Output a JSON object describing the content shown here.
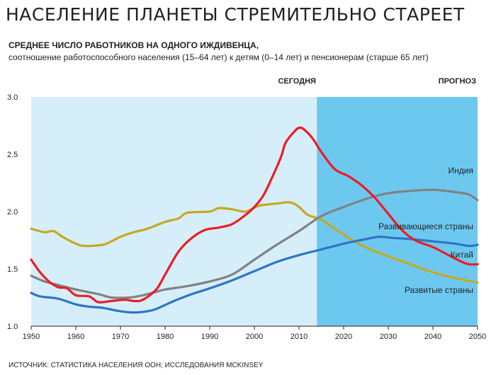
{
  "header": {
    "title": "НАСЕЛЕНИЕ ПЛАНЕТЫ СТРЕМИТЕЛЬНО СТАРЕЕТ",
    "subtitle": "СРЕДНЕЕ ЧИСЛО РАБОТНИКОВ НА ОДНОГО ИЖДИВЕНЦА,",
    "subtitle2": "соотношение работоспособного населения (15–64 лет) к детям (0–14 лет) и пенсионерам (старше 65 лет)"
  },
  "source": "ИСТОЧНИК: СТАТИСТИКА НАСЕЛЕНИЯ ООН; ИССЛЕДОВАНИЯ MCKINSEY",
  "chart_data": {
    "type": "line",
    "xlim": [
      1950,
      2050
    ],
    "ylim": [
      1.0,
      3.0
    ],
    "x_ticks": [
      "1950",
      "1960",
      "1970",
      "1980",
      "1990",
      "2000",
      "2010",
      "2020",
      "2030",
      "2040",
      "2050"
    ],
    "y_ticks": [
      "1.0",
      "1.5",
      "2.0",
      "2.5",
      "3.0"
    ],
    "regions": [
      {
        "label": "СЕГОДНЯ",
        "x_from": 1950,
        "x_to": 2014,
        "color": "#d6eefa"
      },
      {
        "label": "ПРОГНОЗ",
        "x_from": 2014,
        "x_to": 2050,
        "color": "#6dc8ef"
      }
    ],
    "grid": false,
    "series": [
      {
        "name": "Китай",
        "color": "#ed1c24",
        "points": [
          [
            1950,
            1.58
          ],
          [
            1952,
            1.47
          ],
          [
            1954,
            1.39
          ],
          [
            1956,
            1.34
          ],
          [
            1958,
            1.33
          ],
          [
            1960,
            1.27
          ],
          [
            1963,
            1.26
          ],
          [
            1965,
            1.21
          ],
          [
            1968,
            1.22
          ],
          [
            1971,
            1.23
          ],
          [
            1973,
            1.22
          ],
          [
            1975,
            1.23
          ],
          [
            1978,
            1.32
          ],
          [
            1980,
            1.45
          ],
          [
            1983,
            1.65
          ],
          [
            1986,
            1.77
          ],
          [
            1989,
            1.84
          ],
          [
            1992,
            1.86
          ],
          [
            1995,
            1.89
          ],
          [
            1998,
            1.97
          ],
          [
            2000,
            2.04
          ],
          [
            2002,
            2.14
          ],
          [
            2004,
            2.3
          ],
          [
            2006,
            2.48
          ],
          [
            2007,
            2.6
          ],
          [
            2009,
            2.7
          ],
          [
            2010,
            2.73
          ],
          [
            2011,
            2.72
          ],
          [
            2013,
            2.64
          ],
          [
            2015,
            2.52
          ],
          [
            2018,
            2.37
          ],
          [
            2021,
            2.31
          ],
          [
            2024,
            2.23
          ],
          [
            2027,
            2.12
          ],
          [
            2030,
            1.98
          ],
          [
            2033,
            1.84
          ],
          [
            2036,
            1.75
          ],
          [
            2040,
            1.69
          ],
          [
            2043,
            1.63
          ],
          [
            2046,
            1.57
          ],
          [
            2048,
            1.54
          ],
          [
            2050,
            1.54
          ]
        ]
      },
      {
        "name": "Индия",
        "color": "#808285",
        "points": [
          [
            1950,
            1.44
          ],
          [
            1953,
            1.39
          ],
          [
            1956,
            1.36
          ],
          [
            1960,
            1.32
          ],
          [
            1965,
            1.28
          ],
          [
            1968,
            1.25
          ],
          [
            1972,
            1.25
          ],
          [
            1975,
            1.27
          ],
          [
            1978,
            1.3
          ],
          [
            1980,
            1.32
          ],
          [
            1985,
            1.35
          ],
          [
            1990,
            1.39
          ],
          [
            1995,
            1.45
          ],
          [
            2000,
            1.58
          ],
          [
            2005,
            1.71
          ],
          [
            2010,
            1.83
          ],
          [
            2015,
            1.96
          ],
          [
            2020,
            2.04
          ],
          [
            2025,
            2.11
          ],
          [
            2030,
            2.16
          ],
          [
            2035,
            2.18
          ],
          [
            2040,
            2.19
          ],
          [
            2045,
            2.17
          ],
          [
            2048,
            2.15
          ],
          [
            2050,
            2.1
          ]
        ]
      },
      {
        "name": "Развивающиеся страны",
        "color": "#2e75c6",
        "points": [
          [
            1950,
            1.29
          ],
          [
            1952,
            1.26
          ],
          [
            1956,
            1.24
          ],
          [
            1960,
            1.19
          ],
          [
            1963,
            1.17
          ],
          [
            1966,
            1.16
          ],
          [
            1970,
            1.13
          ],
          [
            1973,
            1.12
          ],
          [
            1976,
            1.13
          ],
          [
            1978,
            1.15
          ],
          [
            1982,
            1.22
          ],
          [
            1986,
            1.28
          ],
          [
            1990,
            1.33
          ],
          [
            1995,
            1.4
          ],
          [
            2000,
            1.48
          ],
          [
            2005,
            1.56
          ],
          [
            2010,
            1.62
          ],
          [
            2015,
            1.67
          ],
          [
            2020,
            1.72
          ],
          [
            2025,
            1.76
          ],
          [
            2028,
            1.78
          ],
          [
            2031,
            1.77
          ],
          [
            2035,
            1.76
          ],
          [
            2040,
            1.74
          ],
          [
            2045,
            1.72
          ],
          [
            2048,
            1.7
          ],
          [
            2050,
            1.71
          ]
        ]
      },
      {
        "name": "Развитые страны",
        "color": "#c5a823",
        "points": [
          [
            1950,
            1.85
          ],
          [
            1953,
            1.82
          ],
          [
            1955,
            1.83
          ],
          [
            1957,
            1.78
          ],
          [
            1960,
            1.72
          ],
          [
            1962,
            1.7
          ],
          [
            1966,
            1.71
          ],
          [
            1968,
            1.74
          ],
          [
            1970,
            1.78
          ],
          [
            1973,
            1.82
          ],
          [
            1976,
            1.85
          ],
          [
            1980,
            1.91
          ],
          [
            1983,
            1.94
          ],
          [
            1985,
            1.99
          ],
          [
            1990,
            2.0
          ],
          [
            1992,
            2.03
          ],
          [
            1995,
            2.02
          ],
          [
            1998,
            2.0
          ],
          [
            2001,
            2.05
          ],
          [
            2005,
            2.07
          ],
          [
            2008,
            2.08
          ],
          [
            2010,
            2.04
          ],
          [
            2012,
            1.97
          ],
          [
            2015,
            1.93
          ],
          [
            2018,
            1.85
          ],
          [
            2022,
            1.75
          ],
          [
            2026,
            1.67
          ],
          [
            2030,
            1.61
          ],
          [
            2035,
            1.54
          ],
          [
            2040,
            1.47
          ],
          [
            2045,
            1.42
          ],
          [
            2050,
            1.38
          ]
        ]
      }
    ]
  }
}
